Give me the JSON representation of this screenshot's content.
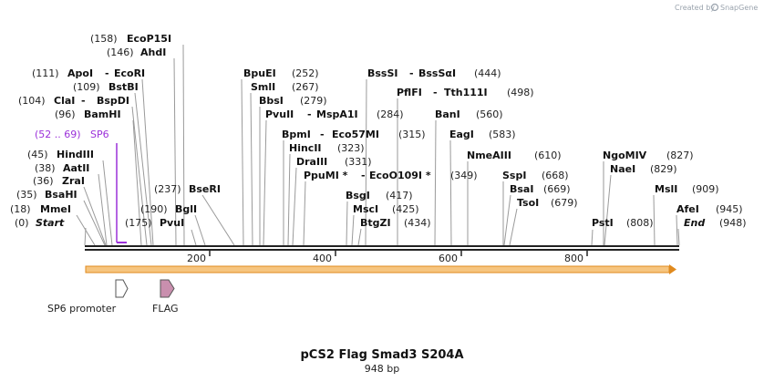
{
  "credit": {
    "text": "Created by",
    "brand": "SnapGene"
  },
  "title": "pCS2 Flag Smad3 S204A",
  "length_label": "948 bp",
  "sequence_length": 948,
  "axis_ticks": [
    "200",
    "400",
    "600",
    "800"
  ],
  "primer": {
    "range": "(52 .. 69)",
    "name": "SP6",
    "color": "#9b30d9"
  },
  "features": [
    {
      "name": "SP6 promoter",
      "type": "promoter",
      "color": "#ffffff"
    },
    {
      "name": "FLAG",
      "type": "tag",
      "color": "#c98fae"
    }
  ],
  "orf_bar": {
    "color": "#f6c57f",
    "border": "#e08a1e"
  },
  "enzymes": [
    {
      "pos": "(0)",
      "name": "Start",
      "italic": true
    },
    {
      "pos": "(18)",
      "name": "MmeI"
    },
    {
      "pos": "(35)",
      "name": "BsaHI"
    },
    {
      "pos": "(36)",
      "name": "ZraI"
    },
    {
      "pos": "(38)",
      "name": "AatII"
    },
    {
      "pos": "(45)",
      "name": "HindIII"
    },
    {
      "pos": "(96)",
      "name": "BamHI"
    },
    {
      "pos": "(104)",
      "name": "ClaI",
      "name2": "BspDI"
    },
    {
      "pos": "(109)",
      "name": "BstBI"
    },
    {
      "pos": "(111)",
      "name": "ApoI",
      "name2": "EcoRI"
    },
    {
      "pos": "(146)",
      "name": "AhdI"
    },
    {
      "pos": "(158)",
      "name": "EcoP15I"
    },
    {
      "pos": "(175)",
      "name": "PvuI"
    },
    {
      "pos": "(190)",
      "name": "BglI"
    },
    {
      "pos": "(237)",
      "name": "BseRI"
    },
    {
      "pos": "(252)",
      "name": "BpuEI"
    },
    {
      "pos": "(267)",
      "name": "SmlI"
    },
    {
      "pos": "(279)",
      "name": "BbsI"
    },
    {
      "pos": "(284)",
      "name": "PvuII",
      "name2": "MspA1I"
    },
    {
      "pos": "(315)",
      "name": "BpmI",
      "name2": "Eco57MI"
    },
    {
      "pos": "(323)",
      "name": "HincII"
    },
    {
      "pos": "(331)",
      "name": "DraIII"
    },
    {
      "pos": "(349)",
      "name": "PpuMI *",
      "name2": "EcoO109I *"
    },
    {
      "pos": "(417)",
      "name": "BsgI"
    },
    {
      "pos": "(425)",
      "name": "MscI"
    },
    {
      "pos": "(434)",
      "name": "BtgZI"
    },
    {
      "pos": "(444)",
      "name": "BssSI",
      "name2": "BssSαI"
    },
    {
      "pos": "(498)",
      "name": "PflFI",
      "name2": "Tth111I"
    },
    {
      "pos": "(560)",
      "name": "BanI"
    },
    {
      "pos": "(583)",
      "name": "EagI"
    },
    {
      "pos": "(610)",
      "name": "NmeAIII"
    },
    {
      "pos": "(668)",
      "name": "SspI"
    },
    {
      "pos": "(669)",
      "name": "BsaI"
    },
    {
      "pos": "(679)",
      "name": "TsoI"
    },
    {
      "pos": "(808)",
      "name": "PstI"
    },
    {
      "pos": "(827)",
      "name": "NgoMIV"
    },
    {
      "pos": "(829)",
      "name": "NaeI"
    },
    {
      "pos": "(909)",
      "name": "MslI"
    },
    {
      "pos": "(945)",
      "name": "AfeI"
    },
    {
      "pos": "(948)",
      "name": "End",
      "italic": true
    }
  ]
}
